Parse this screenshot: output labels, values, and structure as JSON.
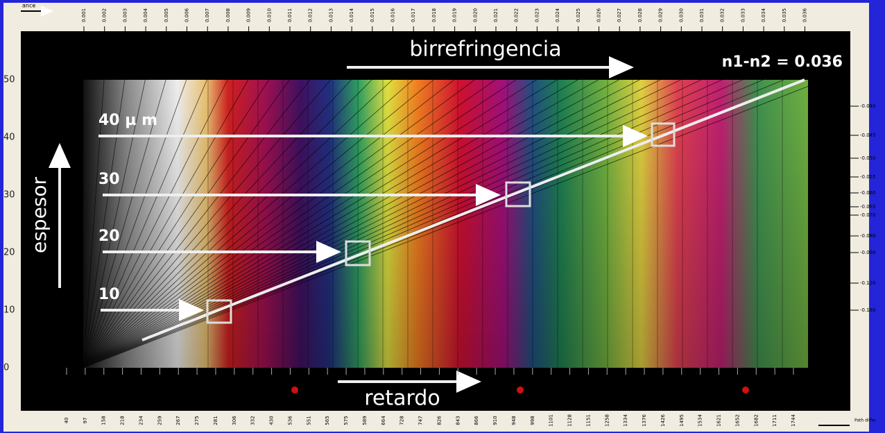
{
  "header": {
    "corner_label": "ance"
  },
  "labels": {
    "birefringence": "birrefringencia",
    "value": "n1-n2 = 0.036",
    "thickness": "espesor",
    "retardation": "retardo",
    "path_difference": "Path differ"
  },
  "thickness_axis": [
    "50",
    "40",
    "30",
    "20",
    "10",
    "0"
  ],
  "thickness_markers": [
    "40 µ m",
    "30",
    "20",
    "10"
  ],
  "birefringence_ticks": [
    "0.001",
    "0.002",
    "0.003",
    "0.004",
    "0.005",
    "0.006",
    "0.007",
    "0.008",
    "0.009",
    "0.010",
    "0.011",
    "0.012",
    "0.013",
    "0.014",
    "0.015",
    "0.016",
    "0.017",
    "0.018",
    "0.019",
    "0.020",
    "0.021",
    "0.022",
    "0.023",
    "0.024",
    "0.025",
    "0.026",
    "0.027",
    "0.028",
    "0.029",
    "0.030",
    "0.031",
    "0.032",
    "0.033",
    "0.034",
    "0.035",
    "0.036"
  ],
  "right_ticks": [
    "-0.040",
    "-0.045",
    "-0.050",
    "-0.055",
    "-0.060",
    "-0.065",
    "-0.070",
    "-0.080",
    "-0.090",
    "-0.120",
    "-0.180"
  ],
  "retardation_ticks": [
    "40",
    "97",
    "158",
    "218",
    "234",
    "259",
    "267",
    "275",
    "281",
    "306",
    "332",
    "430",
    "536",
    "551",
    "565",
    "575",
    "589",
    "664",
    "728",
    "747",
    "826",
    "843",
    "866",
    "910",
    "948",
    "998",
    "1101",
    "1128",
    "1151",
    "1258",
    "1334",
    "1376",
    "1426",
    "1495",
    "1534",
    "1621",
    "1652",
    "1682",
    "1711",
    "1744"
  ]
}
